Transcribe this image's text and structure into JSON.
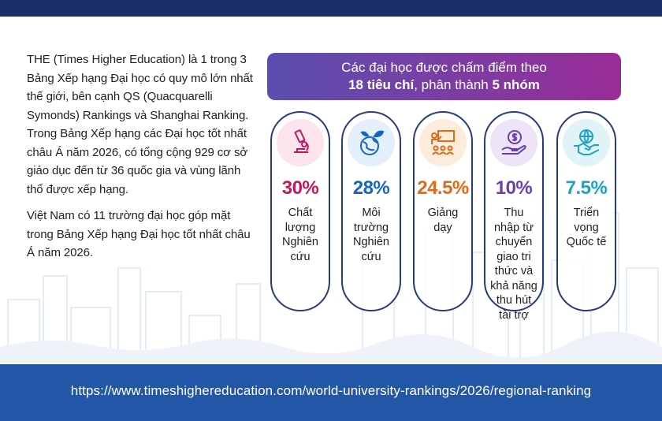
{
  "intro": {
    "paragraph1": "THE (Times Higher Education) là 1 trong 3 Bảng Xếp hạng Đại học có quy mô lớn nhất thế giới, bên cạnh QS (Quacquarelli Symonds) Rankings và Shanghai Ranking. Trong Bảng Xếp hạng các Đại học tốt nhất châu Á năm 2026, có tổng cộng 929 cơ sở giáo dục đến từ 36 quốc gia và vùng lãnh thổ được xếp hạng.",
    "paragraph2": "Việt Nam có 11 trường đại học góp mặt trong Bảng Xếp hạng Đại học tốt nhất châu Á năm 2026."
  },
  "banner": {
    "line1": "Các đại học được chấm điểm theo",
    "count_criteria": "18 tiêu chí",
    "middle": ", phân thành ",
    "count_groups": "5 nhóm"
  },
  "criteria": [
    {
      "percent": "30%",
      "label": "Chất lượng Nghiên cứu",
      "icon": "microscope-icon",
      "color": "#c2185b",
      "bg": "#fce4ec"
    },
    {
      "percent": "28%",
      "label": "Môi trường Nghiên cứu",
      "icon": "globe-leaves-icon",
      "color": "#1565c0",
      "bg": "#e3effa"
    },
    {
      "percent": "24.5%",
      "label": "Giảng dạy",
      "icon": "classroom-icon",
      "color": "#e06a1b",
      "bg": "#fdebdc"
    },
    {
      "percent": "10%",
      "label": "Thu nhập từ chuyển giao tri thức và khả năng thu hút tài trợ",
      "icon": "money-hand-icon",
      "color": "#6a3fb0",
      "bg": "#ede4f7"
    },
    {
      "percent": "7.5%",
      "label": "Triển vọng Quốc tế",
      "icon": "handshake-globe-icon",
      "color": "#1ba3c6",
      "bg": "#e0f4f8"
    }
  ],
  "footer": {
    "url": "https://www.timeshighereducation.com/world-university-rankings/2026/regional-ranking"
  }
}
